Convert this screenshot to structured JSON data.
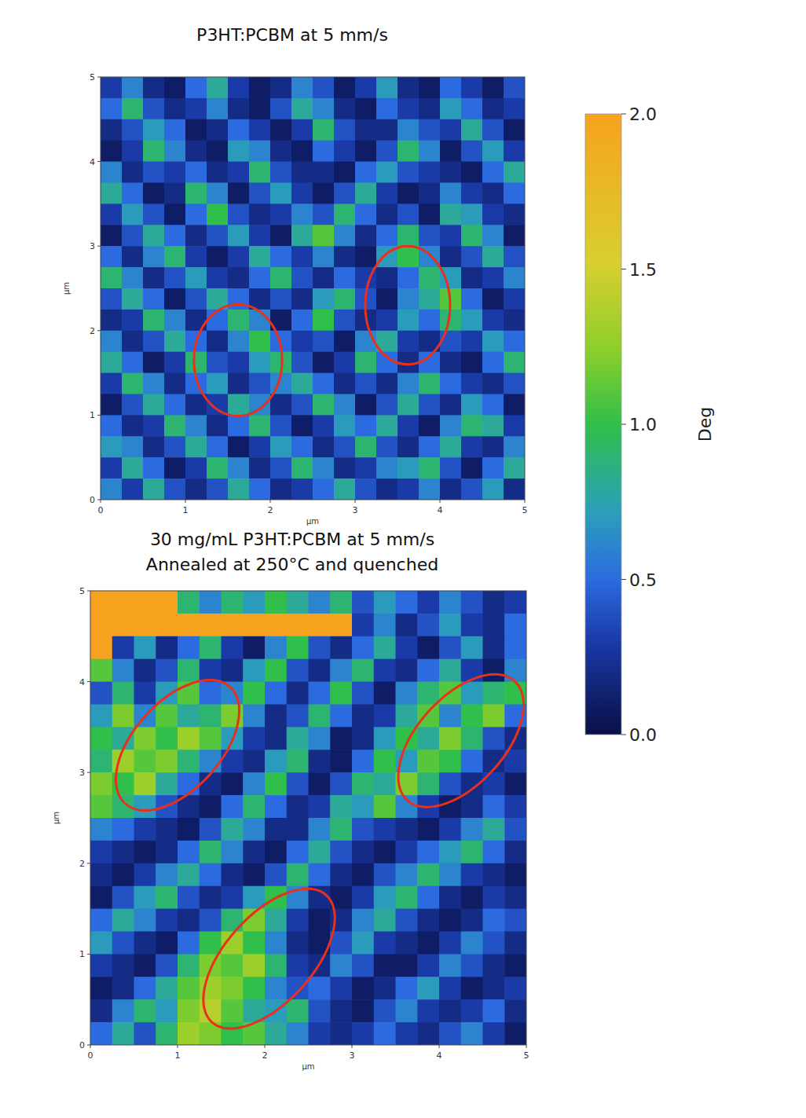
{
  "chart_data": [
    {
      "type": "heatmap",
      "title": "P3HT:PCBM at 5 mm/s",
      "x_label": "µm",
      "y_label": "µm",
      "xlim": [
        0,
        5
      ],
      "ylim": [
        0,
        5
      ],
      "xticks": [
        0,
        1,
        2,
        3,
        4,
        5
      ],
      "yticks": [
        0,
        1,
        2,
        3,
        4,
        5
      ],
      "colorbar": {
        "range": [
          0,
          2
        ],
        "label": "Deg",
        "ticks": [
          {
            "value": 0,
            "label": "0.0"
          },
          {
            "value": 0.5,
            "label": "0.5"
          },
          {
            "value": 1,
            "label": "1.0"
          },
          {
            "value": 1.5,
            "label": "1.5"
          },
          {
            "value": 2,
            "label": "2.0"
          }
        ]
      },
      "cells": [
        [
          0.3,
          0.6,
          0.2,
          0.1,
          0.5,
          0.8,
          0.3,
          0.1,
          0.2,
          0.6,
          0.4,
          0.1,
          0.3,
          0.7,
          0.2,
          0.1,
          0.5,
          0.3,
          0.1,
          0.4
        ],
        [
          0.5,
          0.9,
          0.4,
          0.2,
          0.3,
          0.6,
          0.2,
          0.1,
          0.4,
          0.8,
          0.6,
          0.2,
          0.1,
          0.5,
          0.3,
          0.2,
          0.7,
          0.5,
          0.2,
          0.3
        ],
        [
          0.2,
          0.4,
          0.7,
          0.5,
          0.1,
          0.2,
          0.5,
          0.3,
          0.1,
          0.3,
          0.9,
          0.4,
          0.2,
          0.2,
          0.6,
          0.4,
          0.3,
          0.8,
          0.4,
          0.1
        ],
        [
          0.1,
          0.3,
          0.9,
          0.6,
          0.2,
          0.1,
          0.7,
          0.6,
          0.2,
          0.1,
          0.5,
          0.3,
          0.1,
          0.4,
          0.9,
          0.6,
          0.1,
          0.4,
          0.7,
          0.3
        ],
        [
          0.6,
          0.2,
          0.4,
          0.3,
          0.5,
          0.2,
          0.3,
          0.9,
          0.4,
          0.2,
          0.2,
          0.1,
          0.5,
          0.7,
          0.4,
          0.3,
          0.2,
          0.1,
          0.5,
          0.8
        ],
        [
          0.8,
          0.5,
          0.1,
          0.2,
          0.9,
          0.6,
          0.1,
          0.4,
          0.7,
          0.3,
          0.1,
          0.4,
          0.8,
          0.3,
          0.1,
          0.2,
          0.6,
          0.3,
          0.2,
          0.5
        ],
        [
          0.3,
          0.7,
          0.4,
          0.1,
          0.5,
          1.0,
          0.4,
          0.2,
          0.3,
          0.6,
          0.4,
          0.9,
          0.5,
          0.2,
          0.4,
          0.1,
          0.8,
          0.7,
          0.3,
          0.2
        ],
        [
          0.1,
          0.4,
          0.8,
          0.5,
          0.2,
          0.4,
          0.7,
          0.3,
          0.1,
          0.8,
          1.1,
          0.6,
          0.2,
          0.5,
          0.9,
          0.4,
          0.3,
          0.9,
          0.6,
          0.1
        ],
        [
          0.5,
          0.2,
          0.6,
          0.9,
          0.3,
          0.1,
          0.3,
          0.8,
          0.5,
          0.3,
          0.6,
          0.2,
          0.1,
          0.7,
          1.0,
          0.6,
          0.2,
          0.4,
          0.8,
          0.4
        ],
        [
          0.9,
          0.6,
          0.2,
          0.4,
          0.7,
          0.3,
          0.2,
          0.5,
          0.9,
          0.4,
          0.2,
          0.5,
          0.3,
          0.2,
          0.5,
          0.9,
          0.7,
          0.2,
          0.3,
          0.6
        ],
        [
          0.4,
          0.8,
          0.5,
          0.1,
          0.4,
          0.8,
          0.5,
          0.2,
          0.4,
          0.2,
          0.7,
          0.9,
          0.4,
          0.1,
          0.6,
          0.8,
          1.1,
          0.5,
          0.1,
          0.3
        ],
        [
          0.2,
          0.3,
          0.9,
          0.6,
          0.2,
          0.5,
          0.9,
          0.6,
          0.1,
          0.5,
          1.0,
          0.4,
          0.2,
          0.3,
          0.7,
          0.5,
          0.9,
          0.7,
          0.3,
          0.2
        ],
        [
          0.6,
          0.2,
          0.4,
          0.8,
          0.5,
          0.2,
          0.6,
          1.0,
          0.5,
          0.3,
          0.4,
          0.1,
          0.6,
          0.8,
          0.3,
          0.2,
          0.4,
          0.3,
          0.7,
          0.5
        ],
        [
          0.8,
          0.5,
          0.1,
          0.3,
          0.9,
          0.4,
          0.3,
          0.7,
          0.9,
          0.4,
          0.1,
          0.3,
          0.9,
          0.5,
          0.2,
          0.5,
          0.2,
          0.1,
          0.5,
          0.9
        ],
        [
          0.3,
          0.9,
          0.6,
          0.2,
          0.5,
          0.7,
          0.2,
          0.4,
          0.6,
          0.8,
          0.5,
          0.2,
          0.4,
          0.2,
          0.6,
          0.9,
          0.5,
          0.3,
          0.2,
          0.4
        ],
        [
          0.1,
          0.4,
          0.8,
          0.5,
          0.2,
          0.3,
          0.8,
          0.6,
          0.2,
          0.4,
          0.9,
          0.6,
          0.1,
          0.4,
          0.8,
          0.4,
          0.2,
          0.7,
          0.5,
          0.1
        ],
        [
          0.5,
          0.2,
          0.3,
          0.9,
          0.6,
          0.2,
          0.5,
          0.9,
          0.4,
          0.1,
          0.3,
          0.7,
          0.5,
          0.8,
          0.3,
          0.1,
          0.6,
          0.9,
          0.8,
          0.3
        ],
        [
          0.7,
          0.6,
          0.2,
          0.4,
          0.8,
          0.5,
          0.1,
          0.3,
          0.7,
          0.5,
          0.2,
          0.4,
          0.9,
          0.4,
          0.2,
          0.5,
          0.8,
          0.3,
          0.2,
          0.6
        ],
        [
          0.3,
          0.8,
          0.5,
          0.1,
          0.3,
          0.9,
          0.6,
          0.2,
          0.4,
          0.9,
          0.6,
          0.2,
          0.3,
          0.6,
          0.7,
          0.9,
          0.4,
          0.1,
          0.5,
          0.8
        ],
        [
          0.6,
          0.3,
          0.8,
          0.4,
          0.2,
          0.4,
          0.8,
          0.5,
          0.2,
          0.3,
          0.5,
          0.8,
          0.4,
          0.2,
          0.3,
          0.6,
          0.2,
          0.4,
          0.7,
          0.2
        ]
      ]
    },
    {
      "type": "heatmap",
      "title": "30 mg/mL P3HT:PCBM at 5 mm/s",
      "subtitle": "Annealed at 250°C and quenched",
      "x_label": "µm",
      "y_label": "µm",
      "xlim": [
        0,
        5
      ],
      "ylim": [
        0,
        5
      ],
      "xticks": [
        0,
        1,
        2,
        3,
        4,
        5
      ],
      "yticks": [
        0,
        1,
        2,
        3,
        4,
        5
      ],
      "cells": [
        [
          2.0,
          2.0,
          2.0,
          2.0,
          0.9,
          0.6,
          0.9,
          0.7,
          1.0,
          0.8,
          0.6,
          0.9,
          0.4,
          0.7,
          0.5,
          0.3,
          0.6,
          0.4,
          0.2,
          0.3
        ],
        [
          2.0,
          2.0,
          2.0,
          2.0,
          2.0,
          2.0,
          2.0,
          2.0,
          2.0,
          2.0,
          2.0,
          2.0,
          0.3,
          0.6,
          0.2,
          0.4,
          0.7,
          0.3,
          0.2,
          0.5
        ],
        [
          2.0,
          0.3,
          0.7,
          0.2,
          0.5,
          0.9,
          0.3,
          0.1,
          0.6,
          1.0,
          0.4,
          0.2,
          0.5,
          0.8,
          0.3,
          0.1,
          0.4,
          0.7,
          0.2,
          0.5
        ],
        [
          1.1,
          0.6,
          0.2,
          0.4,
          0.9,
          0.3,
          0.2,
          0.7,
          1.0,
          0.4,
          0.2,
          0.6,
          0.9,
          0.3,
          0.2,
          0.5,
          0.8,
          0.3,
          0.1,
          0.6
        ],
        [
          0.4,
          0.9,
          0.3,
          0.7,
          1.1,
          0.5,
          0.6,
          1.0,
          0.5,
          0.2,
          0.5,
          1.0,
          0.4,
          0.1,
          0.6,
          0.9,
          1.1,
          0.7,
          0.9,
          1.0
        ],
        [
          0.7,
          1.2,
          0.6,
          1.1,
          0.8,
          0.9,
          1.2,
          0.6,
          0.2,
          0.4,
          0.9,
          0.5,
          0.2,
          0.3,
          0.8,
          1.1,
          0.6,
          1.0,
          1.2,
          0.5
        ],
        [
          1.0,
          0.8,
          1.2,
          1.0,
          1.3,
          1.1,
          0.7,
          0.3,
          0.2,
          0.8,
          0.6,
          0.1,
          0.2,
          0.7,
          1.0,
          0.8,
          1.2,
          0.9,
          0.4,
          0.2
        ],
        [
          0.9,
          1.3,
          1.1,
          1.2,
          0.9,
          0.6,
          0.3,
          0.2,
          0.7,
          0.9,
          0.2,
          0.1,
          0.5,
          1.0,
          0.7,
          1.1,
          1.0,
          0.5,
          0.2,
          0.3
        ],
        [
          1.2,
          1.0,
          1.3,
          0.8,
          0.5,
          0.2,
          0.1,
          0.6,
          1.0,
          0.4,
          0.1,
          0.4,
          0.9,
          0.8,
          1.2,
          0.9,
          0.4,
          0.2,
          0.3,
          0.1
        ],
        [
          1.1,
          0.9,
          0.7,
          0.4,
          0.2,
          0.1,
          0.5,
          0.9,
          0.5,
          0.2,
          0.3,
          0.8,
          0.7,
          1.1,
          0.6,
          0.3,
          0.1,
          0.2,
          0.5,
          0.3
        ],
        [
          0.6,
          0.5,
          0.3,
          0.2,
          0.1,
          0.4,
          0.8,
          0.6,
          0.2,
          0.2,
          0.6,
          0.9,
          0.4,
          0.3,
          0.2,
          0.1,
          0.3,
          0.6,
          0.8,
          0.4
        ],
        [
          0.3,
          0.2,
          0.1,
          0.2,
          0.5,
          0.9,
          0.6,
          0.2,
          0.1,
          0.5,
          0.8,
          0.4,
          0.2,
          0.1,
          0.3,
          0.5,
          0.7,
          0.9,
          0.5,
          0.2
        ],
        [
          0.2,
          0.1,
          0.3,
          0.6,
          0.8,
          0.5,
          0.2,
          0.1,
          0.4,
          0.9,
          0.5,
          0.2,
          0.1,
          0.4,
          0.6,
          0.9,
          0.6,
          0.3,
          0.2,
          0.1
        ],
        [
          0.1,
          0.4,
          0.7,
          0.9,
          0.4,
          0.2,
          0.3,
          0.7,
          1.0,
          0.6,
          0.2,
          0.1,
          0.3,
          0.7,
          0.9,
          0.5,
          0.2,
          0.1,
          0.3,
          0.2
        ],
        [
          0.5,
          0.8,
          0.6,
          0.3,
          0.2,
          0.4,
          0.9,
          1.2,
          0.8,
          0.3,
          0.1,
          0.2,
          0.6,
          0.8,
          0.4,
          0.2,
          0.1,
          0.2,
          0.5,
          0.4
        ],
        [
          0.7,
          0.4,
          0.2,
          0.1,
          0.5,
          1.0,
          1.3,
          1.0,
          0.6,
          0.2,
          0.1,
          0.4,
          0.7,
          0.3,
          0.2,
          0.1,
          0.3,
          0.6,
          0.4,
          0.2
        ],
        [
          0.3,
          0.2,
          0.1,
          0.4,
          0.9,
          1.2,
          1.1,
          1.3,
          0.9,
          0.3,
          0.2,
          0.6,
          0.4,
          0.1,
          0.1,
          0.3,
          0.6,
          0.4,
          0.2,
          0.1
        ],
        [
          0.1,
          0.2,
          0.5,
          0.8,
          1.1,
          1.3,
          1.2,
          1.0,
          0.6,
          0.4,
          0.5,
          0.3,
          0.1,
          0.2,
          0.5,
          0.7,
          0.3,
          0.1,
          0.2,
          0.3
        ],
        [
          0.2,
          0.6,
          0.9,
          0.7,
          1.2,
          1.4,
          1.1,
          0.8,
          0.7,
          0.9,
          0.4,
          0.2,
          0.1,
          0.4,
          0.6,
          0.3,
          0.2,
          0.3,
          0.5,
          0.2
        ],
        [
          0.5,
          0.8,
          0.4,
          0.9,
          1.3,
          1.2,
          1.0,
          1.1,
          0.8,
          0.6,
          0.3,
          0.2,
          0.3,
          0.5,
          0.3,
          0.2,
          0.4,
          0.6,
          0.3,
          0.1
        ]
      ]
    }
  ]
}
